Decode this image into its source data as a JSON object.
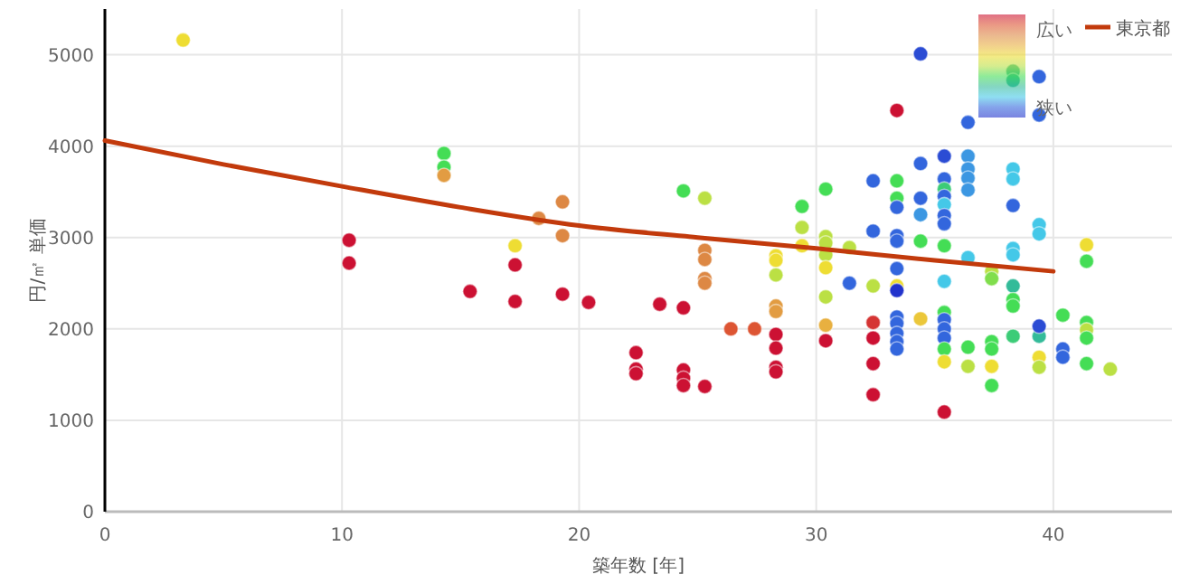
{
  "chart_data": {
    "type": "scatter",
    "xlabel": "築年数 [年]",
    "ylabel": "円/㎡ 単価",
    "xlim": [
      0,
      45
    ],
    "ylim": [
      0,
      5500
    ],
    "xticks": [
      0,
      10,
      20,
      30,
      40
    ],
    "yticks": [
      0,
      1000,
      2000,
      3000,
      4000,
      5000
    ],
    "grid": true,
    "legend": "top right",
    "annotations": [
      "広い",
      "狭い"
    ],
    "series": [
      {
        "type": "scatter",
        "marker": "circle",
        "x": [
          3.3,
          14.3,
          14.3,
          14.3,
          10.3,
          10.3,
          15.4,
          17.3,
          17.3,
          17.3,
          18.3,
          19.3,
          19.3,
          19.3,
          20.4,
          34.4,
          33.4,
          38.3,
          38.3,
          39.4,
          39.4,
          36.4,
          34.4,
          35.4,
          36.4,
          36.4,
          36.4,
          36.4,
          38.3,
          38.3,
          38.3,
          39.4,
          39.4,
          32.4,
          33.4,
          33.4,
          33.4,
          34.4,
          34.4,
          35.4,
          35.4,
          35.4,
          35.4,
          35.4,
          35.4,
          32.4,
          33.4,
          33.4,
          34.4,
          35.4,
          36.4,
          38.3,
          38.3,
          37.4,
          37.4,
          38.3,
          38.3,
          38.3,
          39.4,
          39.4,
          40.4,
          40.4,
          40.4,
          41.4,
          41.4,
          41.4,
          41.4,
          41.4,
          41.4,
          42.4,
          39.4,
          39.4,
          38.3,
          37.4,
          37.4,
          37.4,
          37.4,
          36.4,
          36.4,
          35.4,
          35.4,
          35.4,
          35.4,
          35.4,
          35.4,
          35.4,
          35.4,
          34.4,
          33.4,
          33.4,
          33.4,
          33.4,
          33.4,
          33.4,
          33.4,
          33.4,
          32.4,
          32.4,
          32.4,
          32.4,
          32.4,
          31.4,
          31.4,
          30.4,
          30.4,
          30.4,
          30.4,
          30.4,
          30.4,
          30.4,
          30.4,
          29.4,
          29.4,
          29.4,
          28.3,
          28.3,
          28.3,
          28.3,
          28.3,
          28.3,
          28.3,
          28.3,
          28.3,
          27.4,
          26.4,
          25.3,
          25.3,
          25.3,
          25.3,
          25.3,
          25.3,
          24.4,
          24.4,
          24.4,
          24.4,
          24.4,
          23.4,
          22.4,
          22.4,
          22.4
        ],
        "values": [
          5160,
          3920,
          3770,
          3680,
          2970,
          2720,
          2410,
          2910,
          2700,
          2300,
          3210,
          3390,
          3020,
          2380,
          2290,
          5010,
          4390,
          4820,
          4720,
          4760,
          4340,
          4260,
          3810,
          3890,
          3890,
          3750,
          3650,
          3520,
          3750,
          3640,
          3350,
          3140,
          3040,
          3620,
          3620,
          3430,
          3330,
          3430,
          3250,
          3640,
          3530,
          3450,
          3360,
          3240,
          3150,
          3070,
          3020,
          2960,
          2960,
          2910,
          2780,
          2880,
          2810,
          2630,
          2550,
          2470,
          2320,
          2250,
          1920,
          2030,
          2150,
          1780,
          1690,
          2920,
          2740,
          2070,
          1990,
          1900,
          1620,
          1560,
          1690,
          1580,
          1920,
          1860,
          1780,
          1590,
          1380,
          1800,
          1590,
          2520,
          2180,
          2100,
          2000,
          1900,
          1780,
          1640,
          1090,
          2110,
          2660,
          2470,
          2420,
          2130,
          2060,
          1950,
          1860,
          1780,
          2470,
          2070,
          1900,
          1620,
          1280,
          2890,
          2500,
          3530,
          3010,
          2940,
          2810,
          2670,
          2350,
          2040,
          1870,
          3340,
          3110,
          2910,
          2800,
          2750,
          2590,
          2250,
          2190,
          1940,
          1790,
          1580,
          1530,
          2000,
          2000,
          3430,
          2860,
          2760,
          2550,
          2500,
          1370,
          3510,
          2230,
          1550,
          1460,
          1380,
          2270,
          1740,
          1560,
          1510
        ],
        "colors": [
          "#eedd33",
          "#44dd55",
          "#44dd55",
          "#e29c42",
          "#cc1133",
          "#cc1133",
          "#cc1133",
          "#eedd33",
          "#cc1133",
          "#cc1133",
          "#dd8844",
          "#dd8844",
          "#dd8844",
          "#cc1133",
          "#cc1133",
          "#2b4cd4",
          "#cc1133",
          "#33bb99",
          "#33bb99",
          "#3366dd",
          "#3366dd",
          "#3366dd",
          "#3366dd",
          "#2b4cd4",
          "#3c97e2",
          "#3c97e2",
          "#3c97e2",
          "#3c97e2",
          "#44c8e8",
          "#44c8e8",
          "#3366dd",
          "#44c8e8",
          "#44c8e8",
          "#3366dd",
          "#44dd55",
          "#44dd55",
          "#3366dd",
          "#3366dd",
          "#3c97e2",
          "#3366dd",
          "#3ccc77",
          "#3366dd",
          "#44c8e8",
          "#3366dd",
          "#3366dd",
          "#3366dd",
          "#3366dd",
          "#3366dd",
          "#44dd55",
          "#44dd55",
          "#44c8e8",
          "#44c8e8",
          "#44c8e8",
          "#bbe044",
          "#80de4c",
          "#33bb99",
          "#44dd55",
          "#44dd55",
          "#33bb99",
          "#2b4cd4",
          "#44dd55",
          "#3366dd",
          "#3366dd",
          "#eedd33",
          "#44dd55",
          "#44dd55",
          "#bbe044",
          "#44dd55",
          "#44dd55",
          "#bbe044",
          "#eedd33",
          "#bbe044",
          "#3ccc77",
          "#44dd55",
          "#44dd55",
          "#eedd33",
          "#44dd55",
          "#44dd55",
          "#bbe044",
          "#44c8e8",
          "#44dd55",
          "#3366dd",
          "#3366dd",
          "#3366dd",
          "#44dd55",
          "#eedd33",
          "#cc1133",
          "#ebc73a",
          "#3366dd",
          "#eedd33",
          "#2233cc",
          "#3366dd",
          "#3366dd",
          "#3366dd",
          "#3366dd",
          "#3366dd",
          "#bbe044",
          "#d53433",
          "#cc1133",
          "#cc1133",
          "#cc1133",
          "#bbe044",
          "#3366dd",
          "#44dd55",
          "#bbe044",
          "#bbe044",
          "#bbe044",
          "#eedd33",
          "#bbe044",
          "#e8b040",
          "#cc1133",
          "#44dd55",
          "#bbe044",
          "#eedd33",
          "#eedd33",
          "#eedd33",
          "#bbe044",
          "#e29c42",
          "#e29c42",
          "#cc1133",
          "#cc1133",
          "#cc1133",
          "#cc1133",
          "#dd5533",
          "#dd5533",
          "#bbe044",
          "#dd8844",
          "#dd8844",
          "#dd8844",
          "#dd8844",
          "#cc1133",
          "#44dd55",
          "#cc1133",
          "#cc1133",
          "#cc1133",
          "#cc1133",
          "#cc1133",
          "#cc1133",
          "#cc1133",
          "#cc1133"
        ]
      },
      {
        "type": "line",
        "name": "東京都",
        "color": "#c23a0c",
        "marker": "none",
        "x": [
          0,
          5,
          10,
          15,
          20,
          25,
          30,
          35,
          40
        ],
        "values": [
          4060,
          3800,
          3560,
          3330,
          3130,
          3000,
          2880,
          2750,
          2630
        ]
      }
    ]
  }
}
